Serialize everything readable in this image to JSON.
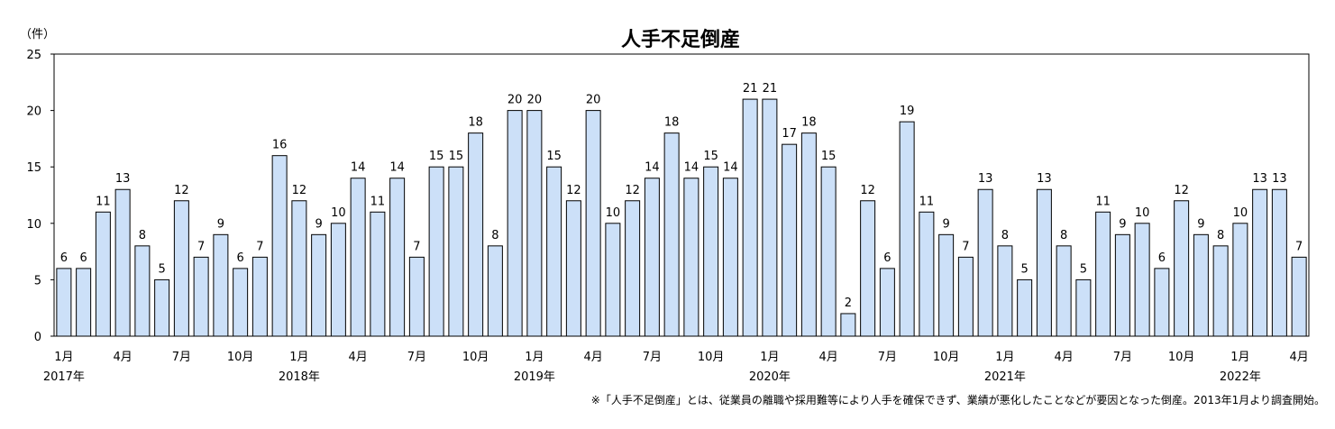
{
  "chart_data": {
    "type": "bar",
    "title": "人手不足倒産",
    "unit": "（件）",
    "ylim": [
      0,
      25
    ],
    "yticks": [
      0,
      5,
      10,
      15,
      20,
      25
    ],
    "grid": false,
    "bar_color": "#cce0f8",
    "bar_edge_color": "#000000",
    "values": [
      6,
      6,
      11,
      13,
      8,
      5,
      12,
      7,
      9,
      6,
      7,
      16,
      12,
      9,
      10,
      14,
      11,
      14,
      7,
      15,
      15,
      18,
      8,
      20,
      20,
      15,
      12,
      20,
      10,
      12,
      14,
      18,
      14,
      15,
      14,
      21,
      21,
      17,
      18,
      15,
      2,
      12,
      6,
      19,
      11,
      9,
      7,
      13,
      8,
      5,
      13,
      8,
      5,
      11,
      9,
      10,
      6,
      12,
      9,
      8,
      10,
      13,
      13,
      7
    ],
    "month_labels": [
      {
        "index": 0,
        "text": "1月"
      },
      {
        "index": 3,
        "text": "4月"
      },
      {
        "index": 6,
        "text": "7月"
      },
      {
        "index": 9,
        "text": "10月"
      },
      {
        "index": 12,
        "text": "1月"
      },
      {
        "index": 15,
        "text": "4月"
      },
      {
        "index": 18,
        "text": "7月"
      },
      {
        "index": 21,
        "text": "10月"
      },
      {
        "index": 24,
        "text": "1月"
      },
      {
        "index": 27,
        "text": "4月"
      },
      {
        "index": 30,
        "text": "7月"
      },
      {
        "index": 33,
        "text": "10月"
      },
      {
        "index": 36,
        "text": "1月"
      },
      {
        "index": 39,
        "text": "4月"
      },
      {
        "index": 42,
        "text": "7月"
      },
      {
        "index": 45,
        "text": "10月"
      },
      {
        "index": 48,
        "text": "1月"
      },
      {
        "index": 51,
        "text": "4月"
      },
      {
        "index": 54,
        "text": "7月"
      },
      {
        "index": 57,
        "text": "10月"
      },
      {
        "index": 60,
        "text": "1月"
      },
      {
        "index": 63,
        "text": "4月"
      }
    ],
    "year_labels": [
      {
        "index": 0,
        "text": "2017年"
      },
      {
        "index": 12,
        "text": "2018年"
      },
      {
        "index": 24,
        "text": "2019年"
      },
      {
        "index": 36,
        "text": "2020年"
      },
      {
        "index": 48,
        "text": "2021年"
      },
      {
        "index": 60,
        "text": "2022年"
      }
    ],
    "footnote": "※「人手不足倒産」とは、従業員の離職や採用難等により人手を確保できず、業績が悪化したことなどが要因となった倒産。2013年1月より調査開始。"
  }
}
